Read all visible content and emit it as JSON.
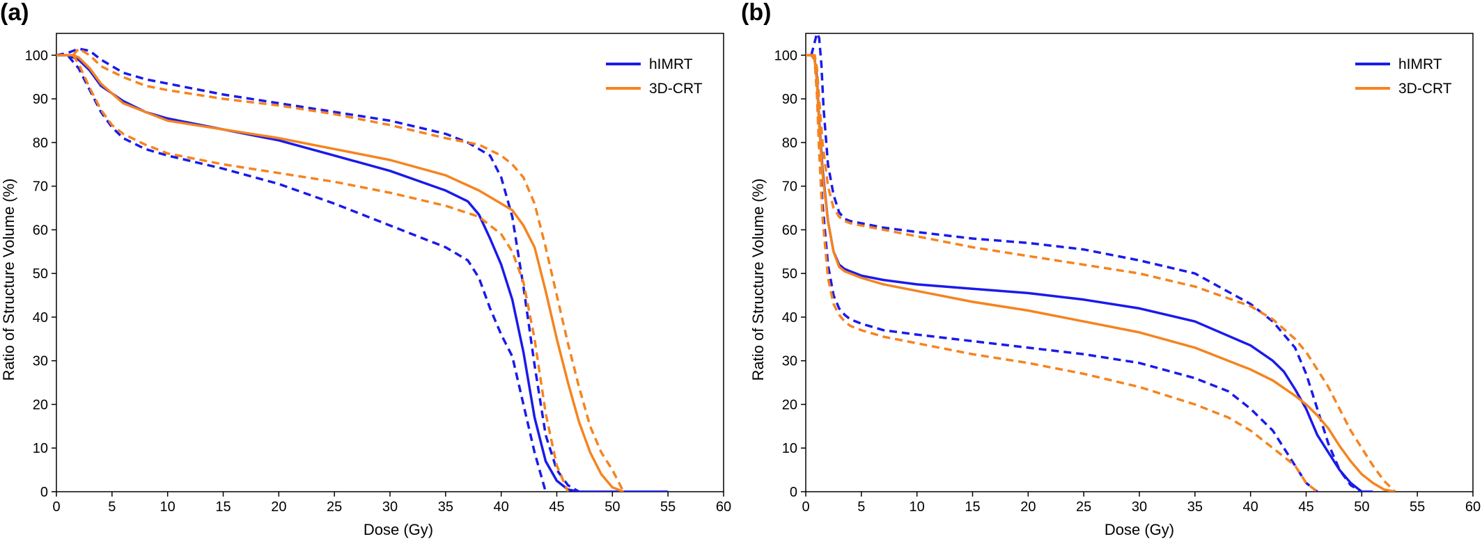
{
  "panels": [
    {
      "panel_label": "(a)",
      "chart_data": {
        "type": "line",
        "title": "",
        "xlabel": "Dose (Gy)",
        "ylabel": "Ratio of Structure Volume (%)",
        "xlim": [
          0,
          60
        ],
        "ylim": [
          0,
          105
        ],
        "xticks": [
          0,
          5,
          10,
          15,
          20,
          25,
          30,
          35,
          40,
          45,
          50,
          55,
          60
        ],
        "yticks": [
          0,
          10,
          20,
          30,
          40,
          50,
          60,
          70,
          80,
          90,
          100
        ],
        "grid": false,
        "legend_position": "top-right",
        "legend": [
          {
            "label": "hIMRT",
            "color": "#1a1aeb"
          },
          {
            "label": "3D-CRT",
            "color": "#f5841f"
          }
        ],
        "series": [
          {
            "name": "hIMRT",
            "color": "#1a1aeb",
            "style": "solid",
            "x": [
              0,
              1,
              2,
              3,
              4,
              6,
              8,
              10,
              15,
              20,
              25,
              30,
              35,
              37,
              38,
              39,
              40,
              41,
              42,
              43,
              44,
              45,
              46,
              47,
              48,
              55
            ],
            "y": [
              100,
              100,
              99,
              96.5,
              93,
              89.5,
              87,
              85.5,
              83,
              80.5,
              77,
              73.5,
              69,
              66.5,
              63.5,
              58,
              52,
              44,
              32,
              17,
              7,
              2.5,
              0.5,
              0,
              0,
              0
            ]
          },
          {
            "name": "hIMRT upper",
            "color": "#1a1aeb",
            "style": "dashed",
            "x": [
              0,
              1,
              2,
              3,
              4,
              6,
              8,
              10,
              15,
              20,
              25,
              30,
              35,
              37,
              38,
              39,
              40,
              41,
              42,
              43,
              44,
              45,
              46,
              47
            ],
            "y": [
              100,
              100.5,
              101.5,
              101,
              99,
              96,
              94.5,
              93.5,
              91,
              89,
              87,
              85,
              82,
              80,
              78.5,
              77,
              72,
              63,
              47,
              29,
              13,
              5,
              1.5,
              0
            ]
          },
          {
            "name": "hIMRT lower",
            "color": "#1a1aeb",
            "style": "dashed",
            "x": [
              0,
              1,
              2,
              3,
              4,
              5,
              6,
              8,
              10,
              15,
              20,
              25,
              30,
              35,
              37,
              38,
              39,
              40,
              41,
              42,
              43,
              44
            ],
            "y": [
              100,
              100,
              97,
              92,
              87,
              83.5,
              81,
              78.5,
              77,
              74,
              70.5,
              66,
              61,
              56,
              53,
              49,
              42,
              36,
              31,
              20,
              9,
              0
            ]
          },
          {
            "name": "3D-CRT",
            "color": "#f5841f",
            "style": "solid",
            "x": [
              0,
              1.5,
              2,
              3,
              4,
              6,
              8,
              10,
              15,
              20,
              25,
              30,
              35,
              38,
              40,
              41,
              42,
              43,
              44,
              45,
              46,
              47,
              48,
              49,
              50,
              51
            ],
            "y": [
              100,
              100,
              99.5,
              97,
              93.5,
              89,
              87,
              85,
              83,
              81,
              78.5,
              76,
              72.5,
              69,
              66,
              64.5,
              61,
              56,
              46,
              35,
              25,
              16,
              9,
              4,
              1,
              0
            ]
          },
          {
            "name": "3D-CRT upper",
            "color": "#f5841f",
            "style": "dashed",
            "x": [
              1.5,
              2,
              3,
              4,
              6,
              8,
              10,
              15,
              20,
              25,
              30,
              35,
              38,
              40,
              41,
              42,
              43,
              44,
              45,
              46,
              47,
              48,
              49,
              50,
              51
            ],
            "y": [
              100,
              101.5,
              100,
              97.5,
              95,
              93,
              92,
              90,
              88.5,
              86.5,
              84,
              81,
              79.5,
              77,
              75,
              72,
              66,
              56,
              45,
              34,
              24,
              15,
              9,
              5,
              0
            ]
          },
          {
            "name": "3D-CRT lower",
            "color": "#f5841f",
            "style": "dashed",
            "x": [
              1.5,
              2,
              3,
              4,
              5,
              6,
              8,
              10,
              15,
              20,
              25,
              30,
              35,
              38,
              40,
              41,
              42,
              43,
              44,
              45,
              46
            ],
            "y": [
              100,
              98,
              92.5,
              87.5,
              84,
              82,
              79.5,
              77.5,
              75,
              73,
              71,
              68.5,
              65.5,
              63,
              59,
              55,
              48,
              35,
              18,
              6,
              0
            ]
          }
        ]
      }
    },
    {
      "panel_label": "(b)",
      "chart_data": {
        "type": "line",
        "title": "",
        "xlabel": "Dose (Gy)",
        "ylabel": "Ratio of Structure Volume (%)",
        "xlim": [
          0,
          60
        ],
        "ylim": [
          0,
          105
        ],
        "xticks": [
          0,
          5,
          10,
          15,
          20,
          25,
          30,
          35,
          40,
          45,
          50,
          55,
          60
        ],
        "yticks": [
          0,
          10,
          20,
          30,
          40,
          50,
          60,
          70,
          80,
          90,
          100
        ],
        "grid": false,
        "legend_position": "top-right",
        "legend": [
          {
            "label": "hIMRT",
            "color": "#1a1aeb"
          },
          {
            "label": "3D-CRT",
            "color": "#f5841f"
          }
        ],
        "series": [
          {
            "name": "hIMRT",
            "color": "#1a1aeb",
            "style": "solid",
            "x": [
              0,
              0.5,
              0.8,
              1,
              1.2,
              1.5,
              2,
              2.5,
              3,
              3.5,
              4,
              5,
              7,
              10,
              15,
              20,
              25,
              30,
              35,
              40,
              42,
              43,
              44,
              45,
              46,
              47,
              48,
              49,
              50,
              51
            ],
            "y": [
              100,
              100,
              99,
              95,
              85,
              74,
              62,
              55,
              52,
              51,
              50.5,
              49.5,
              48.5,
              47.5,
              46.5,
              45.5,
              44,
              42,
              39,
              33.5,
              30,
              27.5,
              23.5,
              19,
              13,
              9,
              5,
              2,
              0,
              0
            ]
          },
          {
            "name": "hIMRT upper",
            "color": "#1a1aeb",
            "style": "dashed",
            "x": [
              0.5,
              0.8,
              1,
              1.2,
              1.4,
              1.6,
              2,
              2.5,
              3,
              3.5,
              4,
              5,
              7,
              10,
              15,
              20,
              25,
              30,
              35,
              40,
              42,
              44,
              45,
              46,
              47,
              48,
              49,
              50
            ],
            "y": [
              100,
              103,
              105,
              104,
              98,
              88,
              75,
              68,
              64,
              62.5,
              62,
              61.5,
              60.5,
              59.5,
              58,
              57,
              55.5,
              53,
              50,
              43,
              39,
              33,
              27,
              19,
              11,
              5,
              1.5,
              0
            ]
          },
          {
            "name": "hIMRT lower",
            "color": "#1a1aeb",
            "style": "dashed",
            "x": [
              0.5,
              0.8,
              1,
              1.2,
              1.5,
              2,
              2.5,
              3,
              3.5,
              4,
              5,
              7,
              10,
              15,
              20,
              25,
              30,
              35,
              38,
              40,
              42,
              44,
              45,
              46
            ],
            "y": [
              100,
              99,
              92,
              80,
              66,
              52,
              45,
              42,
              40.5,
              39.5,
              38.5,
              37,
              36,
              34.5,
              33,
              31.5,
              29.5,
              26,
              23,
              19,
              14,
              6,
              2,
              0
            ]
          },
          {
            "name": "3D-CRT",
            "color": "#f5841f",
            "style": "solid",
            "x": [
              0,
              0.5,
              0.8,
              1,
              1.2,
              1.5,
              2,
              2.5,
              3,
              3.5,
              4,
              5,
              7,
              10,
              15,
              20,
              25,
              30,
              35,
              40,
              42,
              44,
              45,
              46,
              47,
              48,
              49,
              50,
              51,
              52,
              53
            ],
            "y": [
              100,
              100,
              99,
              94,
              84,
              73,
              62,
              55,
              51.5,
              50.5,
              50,
              49,
              47.5,
              46,
              43.5,
              41.5,
              39,
              36.5,
              33,
              28,
              25.5,
              22,
              20,
              17.5,
              14.5,
              10.5,
              7,
              4,
              2,
              0.5,
              0
            ]
          },
          {
            "name": "3D-CRT upper",
            "color": "#f5841f",
            "style": "dashed",
            "x": [
              0.5,
              0.8,
              1,
              1.2,
              1.5,
              2,
              2.5,
              3,
              3.5,
              4,
              5,
              7,
              10,
              15,
              20,
              25,
              30,
              35,
              40,
              42,
              44,
              45,
              46,
              47,
              48,
              49,
              50,
              51,
              52,
              53
            ],
            "y": [
              100,
              100,
              97,
              90,
              80,
              70,
              65,
              63,
              62,
              61.5,
              61,
              60,
              58.5,
              56,
              54,
              52,
              50,
              47,
              42.5,
              39.5,
              35,
              32,
              28,
              24,
              19,
              14,
              10,
              6,
              2.5,
              0
            ]
          },
          {
            "name": "3D-CRT lower",
            "color": "#f5841f",
            "style": "dashed",
            "x": [
              0.5,
              0.8,
              1,
              1.2,
              1.5,
              2,
              2.5,
              3,
              3.5,
              4,
              5,
              7,
              10,
              15,
              20,
              25,
              30,
              35,
              38,
              40,
              42,
              44,
              45,
              46
            ],
            "y": [
              100,
              99,
              91,
              78,
              63,
              49,
              43,
              40.5,
              39,
              38,
              37,
              35.5,
              34,
              31.5,
              29.5,
              27,
              24,
              20,
              17,
              14,
              10,
              6,
              2,
              0
            ]
          }
        ]
      }
    }
  ]
}
